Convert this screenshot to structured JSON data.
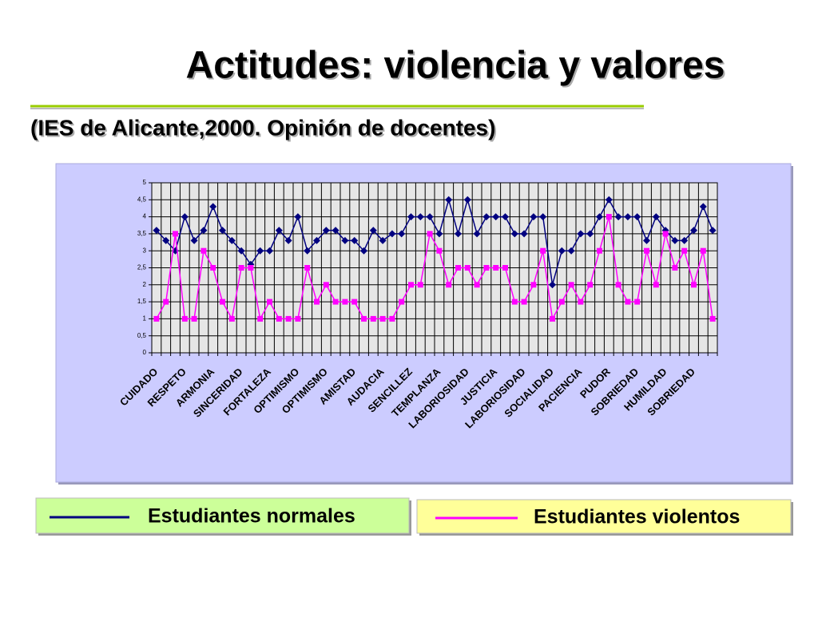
{
  "chart_data": {
    "type": "line",
    "title": "Actitudes: violencia y valores",
    "subtitle": "(IES de Alicante,2000. Opinión de docentes)",
    "categories": [
      "CUIDADO",
      null,
      null,
      "RESPETO",
      null,
      null,
      "ARMONIA",
      null,
      null,
      "SINCERIDAD",
      null,
      null,
      "FORTALEZA",
      null,
      null,
      "OPTIMISMO",
      null,
      null,
      "OPTIMISMO",
      null,
      null,
      "AMISTAD",
      null,
      null,
      "AUDACIA",
      null,
      null,
      "SENCILLEZ",
      null,
      null,
      "TEMPLANZA",
      null,
      null,
      "LABORIOSIDAD",
      null,
      null,
      "JUSTICIA",
      null,
      null,
      "LABORIOSIDAD",
      null,
      null,
      "SOCIALIDAD",
      null,
      null,
      "PACIENCIA",
      null,
      null,
      "PUDOR",
      null,
      null,
      "SOBRIEDAD",
      null,
      null,
      "HUMILDAD",
      null,
      null,
      "SOBRIEDAD",
      null,
      null
    ],
    "series": [
      {
        "name": "Estudiantes normales",
        "color": "#000080",
        "values": [
          3.6,
          3.3,
          3.0,
          4.0,
          3.3,
          3.6,
          4.3,
          3.6,
          3.3,
          3.0,
          2.6,
          3.0,
          3.0,
          3.6,
          3.3,
          4.0,
          3.0,
          3.3,
          3.6,
          3.6,
          3.3,
          3.3,
          3.0,
          3.6,
          3.3,
          3.5,
          3.5,
          4.0,
          4.0,
          4.0,
          3.5,
          4.5,
          3.5,
          4.5,
          3.5,
          4.0,
          4.0,
          4.0,
          3.5,
          3.5,
          4.0,
          4.0,
          2.0,
          3.0,
          3.0,
          3.5,
          3.5,
          4.0,
          4.5,
          4.0,
          4.0,
          4.0,
          3.3,
          4.0,
          3.6,
          3.3,
          3.3,
          3.6,
          4.3,
          3.6
        ]
      },
      {
        "name": "Estudiantes violentos",
        "color": "#ff00ff",
        "values": [
          1.0,
          1.5,
          3.5,
          1.0,
          1.0,
          3.0,
          2.5,
          1.5,
          1.0,
          2.5,
          2.5,
          1.0,
          1.5,
          1.0,
          1.0,
          1.0,
          2.5,
          1.5,
          2.0,
          1.5,
          1.5,
          1.5,
          1.0,
          1.0,
          1.0,
          1.0,
          1.5,
          2.0,
          2.0,
          3.5,
          3.0,
          2.0,
          2.5,
          2.5,
          2.0,
          2.5,
          2.5,
          2.5,
          1.5,
          1.5,
          2.0,
          3.0,
          1.0,
          1.5,
          2.0,
          1.5,
          2.0,
          3.0,
          4.0,
          2.0,
          1.5,
          1.5,
          3.0,
          2.0,
          3.5,
          2.5,
          3.0,
          2.0,
          3.0,
          1.0
        ]
      }
    ],
    "ylim": [
      0,
      5
    ],
    "yticks": [
      0,
      {
        "value": 0.5,
        "label": "0,5"
      },
      1,
      {
        "value": 1.5,
        "label": "1,5"
      },
      2,
      {
        "value": 2.5,
        "label": "2,5"
      },
      3,
      {
        "value": 3.5,
        "label": "3,5"
      },
      4,
      {
        "value": 4.5,
        "label": "4,5"
      },
      5
    ],
    "grid": true
  }
}
